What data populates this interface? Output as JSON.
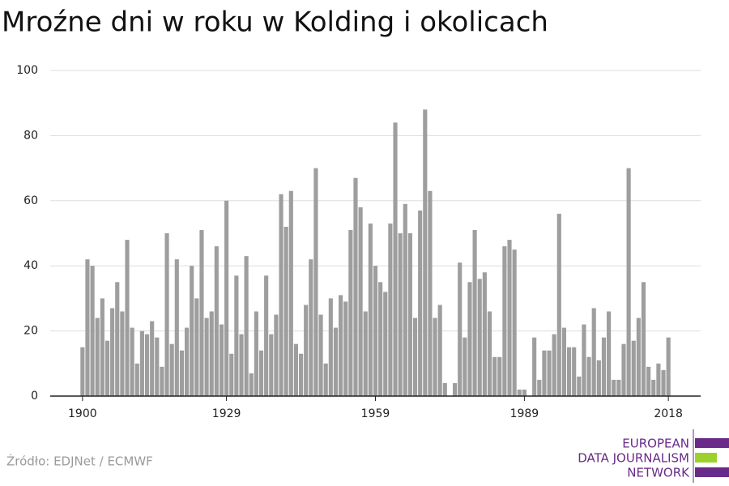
{
  "chart_data": {
    "type": "bar",
    "title": "Mroźne dni w roku w Kolding i okolicach",
    "source": "Źródło: EDJNet / ECMWF",
    "color": "#9e9e9e",
    "grid": true,
    "x": [
      1900,
      1901,
      1902,
      1903,
      1904,
      1905,
      1906,
      1907,
      1908,
      1909,
      1910,
      1911,
      1912,
      1913,
      1914,
      1915,
      1916,
      1917,
      1918,
      1919,
      1920,
      1921,
      1922,
      1923,
      1924,
      1925,
      1926,
      1927,
      1928,
      1929,
      1930,
      1931,
      1932,
      1933,
      1934,
      1935,
      1936,
      1937,
      1938,
      1939,
      1940,
      1941,
      1942,
      1943,
      1944,
      1945,
      1946,
      1947,
      1948,
      1949,
      1950,
      1951,
      1952,
      1953,
      1954,
      1955,
      1956,
      1957,
      1958,
      1959,
      1960,
      1961,
      1962,
      1963,
      1964,
      1965,
      1966,
      1967,
      1968,
      1969,
      1970,
      1971,
      1972,
      1973,
      1974,
      1975,
      1976,
      1977,
      1978,
      1979,
      1980,
      1981,
      1982,
      1983,
      1984,
      1985,
      1986,
      1987,
      1988,
      1989,
      1990,
      1991,
      1992,
      1993,
      1994,
      1995,
      1996,
      1997,
      1998,
      1999,
      2000,
      2001,
      2002,
      2003,
      2004,
      2005,
      2006,
      2007,
      2008,
      2009,
      2010,
      2011,
      2012,
      2013,
      2014,
      2015,
      2016,
      2017,
      2018
    ],
    "values": [
      15,
      42,
      40,
      24,
      30,
      17,
      27,
      35,
      26,
      48,
      21,
      10,
      20,
      19,
      23,
      18,
      9,
      50,
      16,
      42,
      14,
      21,
      40,
      30,
      51,
      24,
      26,
      46,
      22,
      60,
      13,
      37,
      19,
      43,
      7,
      26,
      14,
      37,
      19,
      25,
      62,
      52,
      63,
      16,
      13,
      28,
      42,
      70,
      25,
      10,
      30,
      21,
      31,
      29,
      51,
      67,
      58,
      26,
      53,
      40,
      35,
      32,
      53,
      84,
      50,
      59,
      50,
      24,
      57,
      88,
      63,
      24,
      28,
      4,
      0,
      4,
      41,
      18,
      35,
      51,
      36,
      38,
      26,
      12,
      12,
      46,
      48,
      45,
      2,
      2,
      0,
      18,
      5,
      14,
      14,
      19,
      56,
      21,
      15,
      15,
      6,
      22,
      12,
      27,
      11,
      18,
      26,
      5,
      5,
      16,
      70,
      17,
      24,
      35,
      9,
      5,
      10,
      8,
      18
    ],
    "xlim": [
      1893.5,
      2024.5
    ],
    "xticks": [
      1900,
      1929,
      1959,
      1989,
      2018
    ],
    "ylim": [
      0,
      100
    ],
    "yticks": [
      0,
      20,
      40,
      60,
      80,
      100
    ]
  },
  "logo": {
    "lines": [
      "EUROPEAN",
      "DATA JOURNALISM",
      "NETWORK"
    ]
  }
}
